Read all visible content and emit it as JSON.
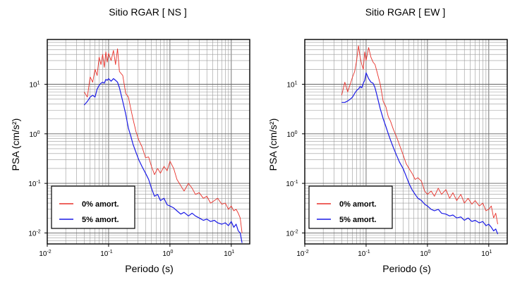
{
  "chart_data": [
    {
      "type": "line",
      "title": "Sitio RGAR [ NS ]",
      "xlabel": "Periodo (s)",
      "ylabel": "PSA (cm/s²)",
      "xscale": "log",
      "yscale": "log",
      "xlim": [
        0.01,
        20
      ],
      "ylim": [
        0.006,
        80
      ],
      "x_ticks": [
        {
          "base": "10",
          "exp": "-2"
        },
        {
          "base": "10",
          "exp": "-1"
        },
        {
          "base": "10",
          "exp": "0"
        },
        {
          "base": "10",
          "exp": "1"
        }
      ],
      "y_ticks": [
        {
          "base": "10",
          "exp": "-2"
        },
        {
          "base": "10",
          "exp": "-1"
        },
        {
          "base": "10",
          "exp": "0"
        },
        {
          "base": "10",
          "exp": "1"
        }
      ],
      "grid": true,
      "legend_position": "bottom-left",
      "series": [
        {
          "name": "0% amort.",
          "color": "#e8312a",
          "x": [
            0.04,
            0.045,
            0.05,
            0.055,
            0.06,
            0.065,
            0.07,
            0.075,
            0.08,
            0.085,
            0.09,
            0.095,
            0.1,
            0.11,
            0.12,
            0.13,
            0.14,
            0.15,
            0.17,
            0.19,
            0.21,
            0.23,
            0.25,
            0.28,
            0.31,
            0.35,
            0.4,
            0.45,
            0.5,
            0.56,
            0.63,
            0.7,
            0.8,
            0.9,
            1.0,
            1.15,
            1.3,
            1.5,
            1.7,
            2.0,
            2.3,
            2.6,
            3.0,
            3.5,
            4.0,
            4.6,
            5.3,
            6.0,
            7.0,
            8.0,
            9.0,
            10.0,
            11.0,
            12.0,
            13.0,
            14.0,
            15.0
          ],
          "y": [
            7,
            5.5,
            14,
            11,
            20,
            15,
            35,
            25,
            40,
            22,
            45,
            28,
            42,
            30,
            48,
            25,
            52,
            18,
            15,
            6.5,
            5.5,
            3.2,
            2.0,
            1.1,
            0.75,
            0.55,
            0.33,
            0.34,
            0.22,
            0.15,
            0.2,
            0.16,
            0.22,
            0.18,
            0.28,
            0.2,
            0.12,
            0.09,
            0.07,
            0.1,
            0.08,
            0.06,
            0.065,
            0.05,
            0.055,
            0.04,
            0.045,
            0.05,
            0.038,
            0.04,
            0.03,
            0.035,
            0.028,
            0.03,
            0.025,
            0.02,
            0.01
          ]
        },
        {
          "name": "5% amort.",
          "color": "#1a1ae6",
          "x": [
            0.04,
            0.045,
            0.05,
            0.055,
            0.06,
            0.065,
            0.07,
            0.075,
            0.08,
            0.085,
            0.09,
            0.095,
            0.1,
            0.11,
            0.12,
            0.13,
            0.14,
            0.15,
            0.17,
            0.19,
            0.21,
            0.23,
            0.25,
            0.28,
            0.31,
            0.35,
            0.4,
            0.45,
            0.5,
            0.56,
            0.63,
            0.7,
            0.8,
            0.9,
            1.0,
            1.15,
            1.3,
            1.5,
            1.7,
            2.0,
            2.3,
            2.6,
            3.0,
            3.5,
            4.0,
            4.6,
            5.3,
            6.0,
            7.0,
            8.0,
            9.0,
            10.0,
            11.0,
            12.0,
            13.0,
            14.0,
            15.0
          ],
          "y": [
            3.8,
            4.5,
            5.5,
            6.0,
            5.5,
            8.0,
            9.5,
            10.5,
            11.0,
            10.5,
            12.5,
            12.0,
            13.0,
            11.5,
            13.0,
            12.0,
            11.0,
            8.5,
            4.5,
            2.5,
            1.3,
            0.9,
            0.62,
            0.42,
            0.3,
            0.22,
            0.16,
            0.12,
            0.08,
            0.055,
            0.06,
            0.045,
            0.05,
            0.037,
            0.035,
            0.032,
            0.028,
            0.024,
            0.026,
            0.022,
            0.025,
            0.022,
            0.02,
            0.018,
            0.019,
            0.017,
            0.018,
            0.016,
            0.015,
            0.016,
            0.014,
            0.017,
            0.013,
            0.015,
            0.011,
            0.01,
            0.0063
          ]
        }
      ]
    },
    {
      "type": "line",
      "title": "Sitio RGAR [ EW ]",
      "xlabel": "Periodo (s)",
      "ylabel": "PSA (cm/s²)",
      "xscale": "log",
      "yscale": "log",
      "xlim": [
        0.01,
        20
      ],
      "ylim": [
        0.006,
        80
      ],
      "x_ticks": [
        {
          "base": "10",
          "exp": "-2"
        },
        {
          "base": "10",
          "exp": "-1"
        },
        {
          "base": "10",
          "exp": "0"
        },
        {
          "base": "10",
          "exp": "1"
        }
      ],
      "y_ticks": [
        {
          "base": "10",
          "exp": "-2"
        },
        {
          "base": "10",
          "exp": "-1"
        },
        {
          "base": "10",
          "exp": "0"
        },
        {
          "base": "10",
          "exp": "1"
        }
      ],
      "grid": true,
      "legend_position": "bottom-left",
      "series": [
        {
          "name": "0% amort.",
          "color": "#e8312a",
          "x": [
            0.04,
            0.045,
            0.05,
            0.055,
            0.06,
            0.065,
            0.07,
            0.075,
            0.08,
            0.085,
            0.09,
            0.095,
            0.1,
            0.11,
            0.12,
            0.13,
            0.14,
            0.15,
            0.17,
            0.19,
            0.21,
            0.23,
            0.25,
            0.28,
            0.31,
            0.35,
            0.4,
            0.45,
            0.5,
            0.56,
            0.63,
            0.7,
            0.8,
            0.9,
            1.0,
            1.15,
            1.3,
            1.5,
            1.7,
            2.0,
            2.3,
            2.6,
            3.0,
            3.5,
            4.0,
            4.6,
            5.3,
            6.0,
            7.0,
            8.0,
            9.0,
            10.0,
            11.0,
            12.0,
            13.0,
            14.0
          ],
          "y": [
            6,
            11,
            7,
            10,
            14,
            18,
            30,
            60,
            35,
            25,
            20,
            45,
            30,
            55,
            35,
            28,
            25,
            18,
            10,
            4.5,
            3.5,
            2.2,
            1.8,
            1.2,
            0.9,
            0.6,
            0.38,
            0.25,
            0.2,
            0.16,
            0.12,
            0.13,
            0.11,
            0.07,
            0.06,
            0.07,
            0.055,
            0.08,
            0.06,
            0.075,
            0.05,
            0.065,
            0.045,
            0.06,
            0.04,
            0.05,
            0.038,
            0.045,
            0.035,
            0.04,
            0.028,
            0.03,
            0.035,
            0.02,
            0.025,
            0.015
          ]
        },
        {
          "name": "5% amort.",
          "color": "#1a1ae6",
          "x": [
            0.04,
            0.045,
            0.05,
            0.055,
            0.06,
            0.065,
            0.07,
            0.075,
            0.08,
            0.085,
            0.09,
            0.095,
            0.1,
            0.11,
            0.12,
            0.13,
            0.14,
            0.15,
            0.17,
            0.19,
            0.21,
            0.23,
            0.25,
            0.28,
            0.31,
            0.35,
            0.4,
            0.45,
            0.5,
            0.56,
            0.63,
            0.7,
            0.8,
            0.9,
            1.0,
            1.15,
            1.3,
            1.5,
            1.7,
            2.0,
            2.3,
            2.6,
            3.0,
            3.5,
            4.0,
            4.6,
            5.3,
            6.0,
            7.0,
            8.0,
            9.0,
            10.0,
            11.0,
            12.0,
            13.0,
            14.0
          ],
          "y": [
            4.3,
            4.3,
            4.6,
            5.0,
            5.5,
            6.5,
            7.5,
            8.0,
            9.0,
            8.5,
            10.5,
            12.0,
            17.0,
            13.0,
            11.0,
            10.5,
            8.5,
            6.0,
            3.2,
            2.0,
            1.4,
            1.0,
            0.75,
            0.52,
            0.38,
            0.27,
            0.2,
            0.14,
            0.1,
            0.075,
            0.06,
            0.05,
            0.045,
            0.038,
            0.035,
            0.03,
            0.028,
            0.03,
            0.025,
            0.024,
            0.022,
            0.023,
            0.02,
            0.021,
            0.018,
            0.02,
            0.017,
            0.018,
            0.016,
            0.017,
            0.014,
            0.015,
            0.013,
            0.011,
            0.012,
            0.0095
          ]
        }
      ]
    }
  ]
}
